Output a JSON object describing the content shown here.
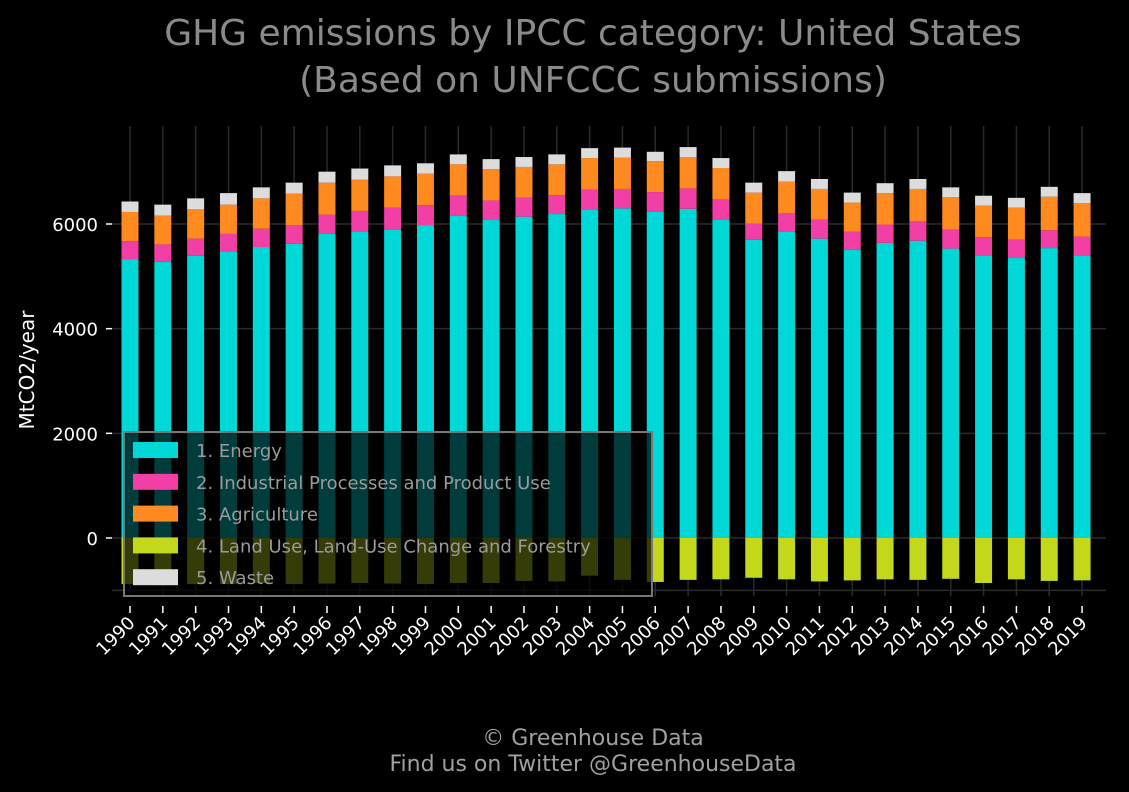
{
  "chart_data": {
    "type": "bar",
    "stacked": true,
    "title": "GHG emissions by IPCC category: United States",
    "subtitle": "(Based on UNFCCC submissions)",
    "xlabel": "",
    "ylabel": "MtCO2/year",
    "ylim": [
      -1000,
      7700
    ],
    "yticks": [
      0,
      2000,
      4000,
      6000
    ],
    "grid": true,
    "legend_position": "lower-left",
    "categories": [
      "1990",
      "1991",
      "1992",
      "1993",
      "1994",
      "1995",
      "1996",
      "1997",
      "1998",
      "1999",
      "2000",
      "2001",
      "2002",
      "2003",
      "2004",
      "2005",
      "2006",
      "2007",
      "2008",
      "2009",
      "2010",
      "2011",
      "2012",
      "2013",
      "2014",
      "2015",
      "2016",
      "2017",
      "2018",
      "2019"
    ],
    "series": [
      {
        "name": "1. Energy",
        "color": "#00d7d7",
        "values": [
          5330,
          5280,
          5390,
          5480,
          5560,
          5620,
          5810,
          5860,
          5900,
          5980,
          6160,
          6090,
          6140,
          6190,
          6280,
          6300,
          6230,
          6290,
          6090,
          5700,
          5860,
          5720,
          5510,
          5640,
          5680,
          5530,
          5400,
          5350,
          5540,
          5400
        ]
      },
      {
        "name": "2. Industrial Processes and Product Use",
        "color": "#f23fa5",
        "values": [
          340,
          330,
          330,
          330,
          350,
          360,
          370,
          390,
          410,
          380,
          380,
          360,
          360,
          360,
          380,
          370,
          380,
          390,
          380,
          310,
          350,
          360,
          340,
          350,
          370,
          360,
          350,
          350,
          340,
          360
        ]
      },
      {
        "name": "3. Agriculture",
        "color": "#ff8a1f",
        "values": [
          560,
          550,
          560,
          560,
          580,
          600,
          610,
          600,
          600,
          600,
          600,
          600,
          590,
          590,
          600,
          600,
          590,
          600,
          600,
          590,
          600,
          590,
          560,
          600,
          620,
          620,
          600,
          610,
          640,
          640
        ]
      },
      {
        "name": "4. Land Use, Land-Use Change and Forestry",
        "color": "#c3d81a",
        "values": [
          -880,
          -900,
          -880,
          -880,
          -860,
          -880,
          -870,
          -860,
          -870,
          -880,
          -860,
          -860,
          -820,
          -830,
          -720,
          -800,
          -840,
          -800,
          -790,
          -760,
          -790,
          -830,
          -810,
          -790,
          -800,
          -780,
          -860,
          -790,
          -820,
          -810
        ]
      },
      {
        "name": "5. Waste",
        "color": "#dcdcdc",
        "values": [
          200,
          210,
          210,
          220,
          210,
          210,
          210,
          210,
          210,
          200,
          190,
          190,
          190,
          190,
          190,
          190,
          180,
          190,
          190,
          190,
          200,
          190,
          190,
          190,
          190,
          190,
          190,
          190,
          190,
          190
        ]
      }
    ]
  },
  "footer": {
    "copyright": "© Greenhouse Data",
    "twitter": "Find us on Twitter @GreenhouseData"
  }
}
